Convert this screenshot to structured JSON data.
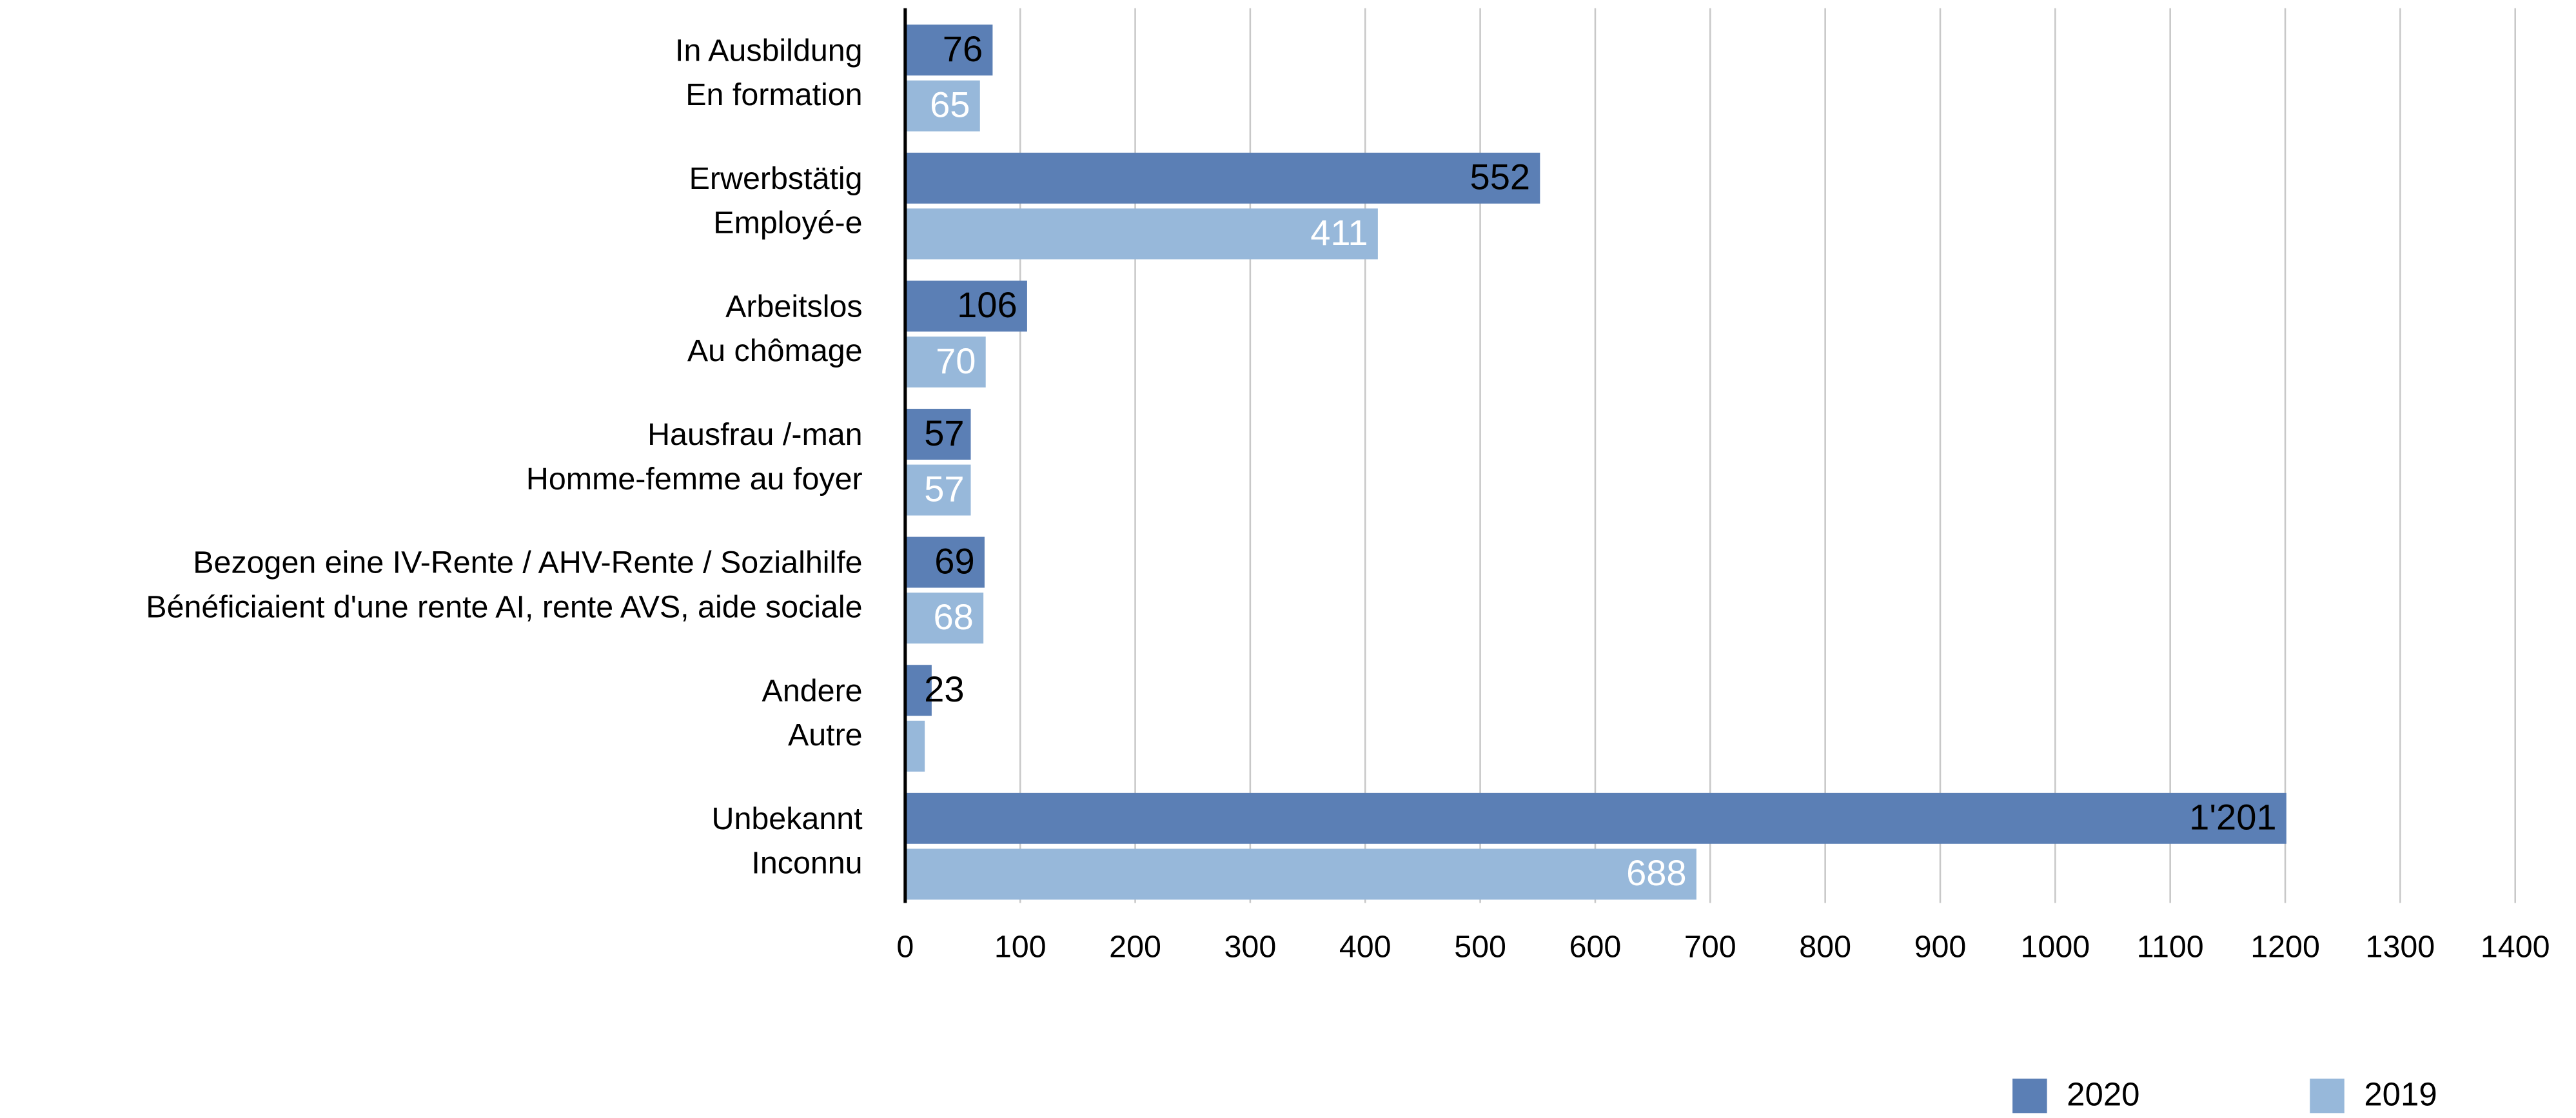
{
  "chart_data": {
    "type": "barh",
    "categories": [
      [
        "In Ausbildung",
        "En formation"
      ],
      [
        "Erwerbstätig",
        "Employé-e"
      ],
      [
        "Arbeitslos",
        "Au chômage"
      ],
      [
        "Hausfrau /-man",
        "Homme-femme au foyer"
      ],
      [
        "Bezogen eine IV-Rente / AHV-Rente / Sozialhilfe",
        "Bénéficiaient d'une rente AI, rente AVS, aide sociale"
      ],
      [
        "Andere",
        "Autre"
      ],
      [
        "Unbekannt",
        "Inconnu"
      ]
    ],
    "series": [
      {
        "name": "2020",
        "color": "#5b7fb5",
        "label_color": "#000000",
        "values": [
          76,
          552,
          106,
          57,
          69,
          23,
          1201
        ],
        "value_labels": [
          "76",
          "552",
          "106",
          "57",
          "69",
          "23",
          "1'201"
        ]
      },
      {
        "name": "2019",
        "color": "#97b8da",
        "label_color": "#ffffff",
        "values": [
          65,
          411,
          70,
          57,
          68,
          17,
          688
        ],
        "value_labels": [
          "65",
          "411",
          "70",
          "57",
          "68",
          null,
          "688"
        ]
      }
    ],
    "xlim": [
      0,
      1400
    ],
    "xticks": [
      0,
      100,
      200,
      300,
      400,
      500,
      600,
      700,
      800,
      900,
      1000,
      1100,
      1200,
      1300,
      1400
    ],
    "grid": true,
    "legend": "bottom-right"
  }
}
